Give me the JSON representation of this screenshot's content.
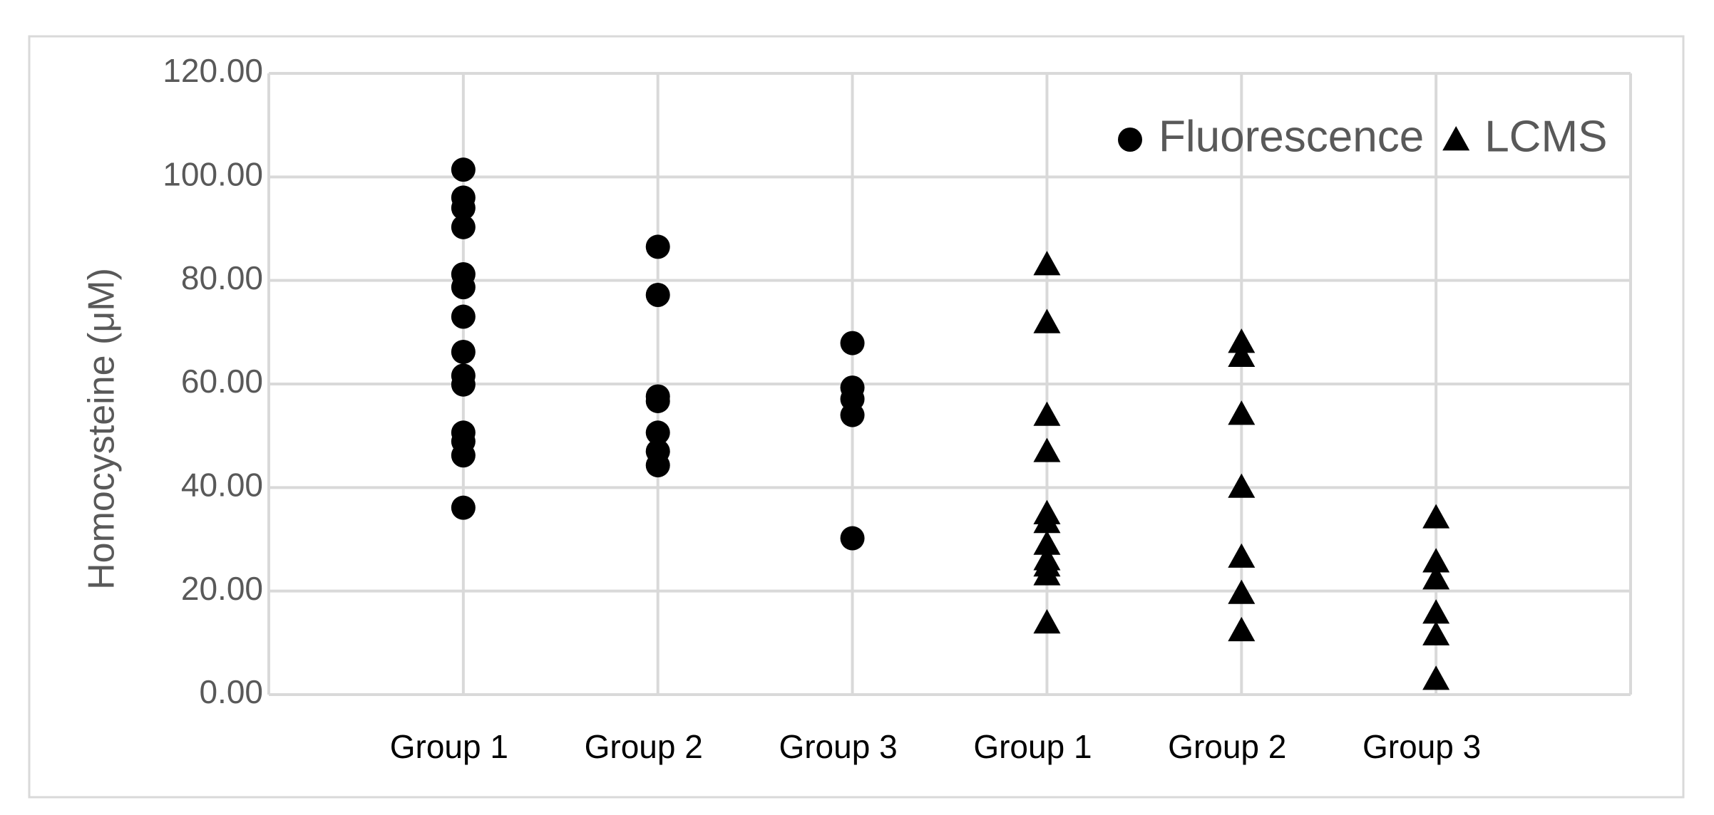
{
  "chart_data": {
    "type": "strip",
    "y_label": "Homocysteine (μM)",
    "categories": [
      "Group 1",
      "Group 2",
      "Group 3",
      "Group 1",
      "Group 2",
      "Group 3"
    ],
    "series": [
      {
        "name": "Fluorescence",
        "marker": "circle",
        "color": "#000000",
        "values": [
          [
            101.4,
            96,
            94,
            90.3,
            81.2,
            78.7,
            73,
            66.2,
            61.6,
            59.9,
            50.6,
            48.9,
            46.2,
            36.1
          ],
          [
            86.5,
            77.2,
            57.6,
            56.7,
            50.6,
            47,
            44.3
          ],
          [
            67.9,
            59.3,
            57.1,
            54,
            30.2
          ],
          [],
          [],
          []
        ]
      },
      {
        "name": "LCMS",
        "marker": "triangle",
        "color": "#000000",
        "values": [
          [],
          [],
          [],
          [
            83.1,
            71.9,
            54,
            47,
            35,
            33.3,
            29.1,
            26.1,
            24.9,
            23.2,
            13.9
          ],
          [
            68.1,
            65.4,
            54.2,
            40.1,
            26.6,
            19.6,
            12.4
          ],
          [
            34.2,
            25.7,
            22.4,
            15.8,
            11.6,
            3
          ]
        ]
      }
    ],
    "ylim": [
      0,
      120
    ],
    "yticks": [
      {
        "value": 0,
        "label": "0.00"
      },
      {
        "value": 20,
        "label": "20.00"
      },
      {
        "value": 40,
        "label": "40.00"
      },
      {
        "value": 60,
        "label": "60.00"
      },
      {
        "value": 80,
        "label": "80.00"
      },
      {
        "value": 100,
        "label": "100.00"
      },
      {
        "value": 120,
        "label": "120.00"
      }
    ],
    "grid": true,
    "legend": "upper right"
  }
}
